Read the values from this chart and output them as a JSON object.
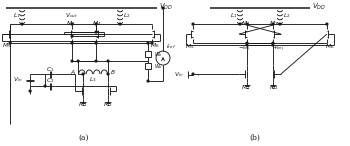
{
  "lc": "#1a1a1a",
  "lw": 0.65,
  "bg": "white",
  "fs_label": 4.3,
  "fs_main": 5.0,
  "fs_caption": 5.5
}
